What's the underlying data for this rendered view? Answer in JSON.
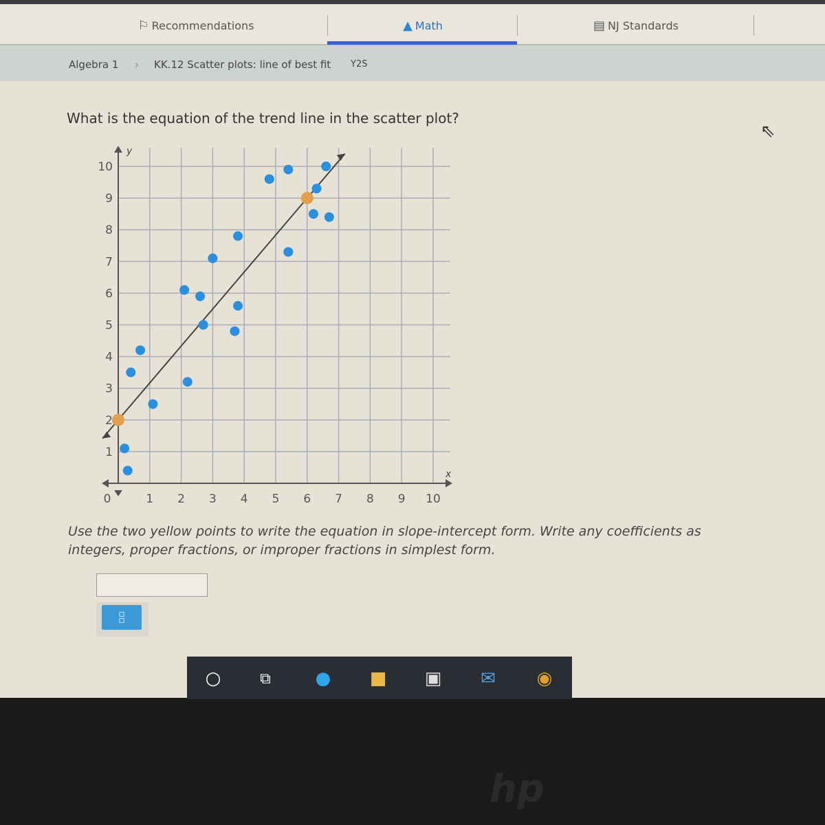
{
  "nav": {
    "tabs": [
      {
        "label": "Recommendations",
        "icon": "recommendations-icon",
        "active": false
      },
      {
        "label": "Math",
        "icon": "pyramid-icon",
        "active": true
      },
      {
        "label": "NJ Standards",
        "icon": "clipboard-icon",
        "active": false
      }
    ]
  },
  "breadcrumb": {
    "course": "Algebra 1",
    "separator": "›",
    "skill": "KK.12 Scatter plots: line of best fit",
    "code": "Y2S"
  },
  "question": "What is the equation of the trend line in the scatter plot?",
  "instructions": "Use the two yellow points to write the equation in slope-intercept form. Write any coefficients as integers, proper fractions, or improper fractions in simplest form.",
  "answer": {
    "value": "",
    "fraction_button_icon": "fraction-icon"
  },
  "colors": {
    "accent": "#3a5fd0",
    "point": "#2b8fe0",
    "highlight_point": "#e0a050",
    "line": "#444444"
  },
  "chart_data": {
    "type": "scatter",
    "xlabel": "x",
    "ylabel": "y",
    "xlim": [
      0,
      10
    ],
    "ylim": [
      0,
      10
    ],
    "x_ticks": [
      "0",
      "1",
      "2",
      "3",
      "4",
      "5",
      "6",
      "7",
      "8",
      "9",
      "10"
    ],
    "y_ticks": [
      "1",
      "2",
      "3",
      "4",
      "5",
      "6",
      "7",
      "8",
      "9",
      "10"
    ],
    "grid": true,
    "points": [
      [
        4.8,
        9.6
      ],
      [
        5.4,
        9.9
      ],
      [
        6.6,
        10.0
      ],
      [
        6.3,
        9.3
      ],
      [
        6.2,
        8.5
      ],
      [
        6.7,
        8.4
      ],
      [
        3.8,
        7.8
      ],
      [
        5.4,
        7.3
      ],
      [
        3.0,
        7.1
      ],
      [
        2.1,
        6.1
      ],
      [
        2.6,
        5.9
      ],
      [
        3.8,
        5.6
      ],
      [
        2.7,
        5.0
      ],
      [
        3.7,
        4.8
      ],
      [
        0.7,
        4.2
      ],
      [
        0.4,
        3.5
      ],
      [
        2.2,
        3.2
      ],
      [
        1.1,
        2.5
      ],
      [
        0.2,
        1.1
      ],
      [
        0.3,
        0.4
      ]
    ],
    "highlight_points": [
      [
        0,
        2
      ],
      [
        6,
        9
      ]
    ],
    "trend_line": {
      "slope": "7/6",
      "intercept": 2
    }
  },
  "taskbar": {
    "icons": [
      "cortana-icon",
      "task-view-icon",
      "edge-icon",
      "file-explorer-icon",
      "store-icon",
      "mail-icon",
      "chrome-icon"
    ]
  },
  "bezel_logo": "hp"
}
